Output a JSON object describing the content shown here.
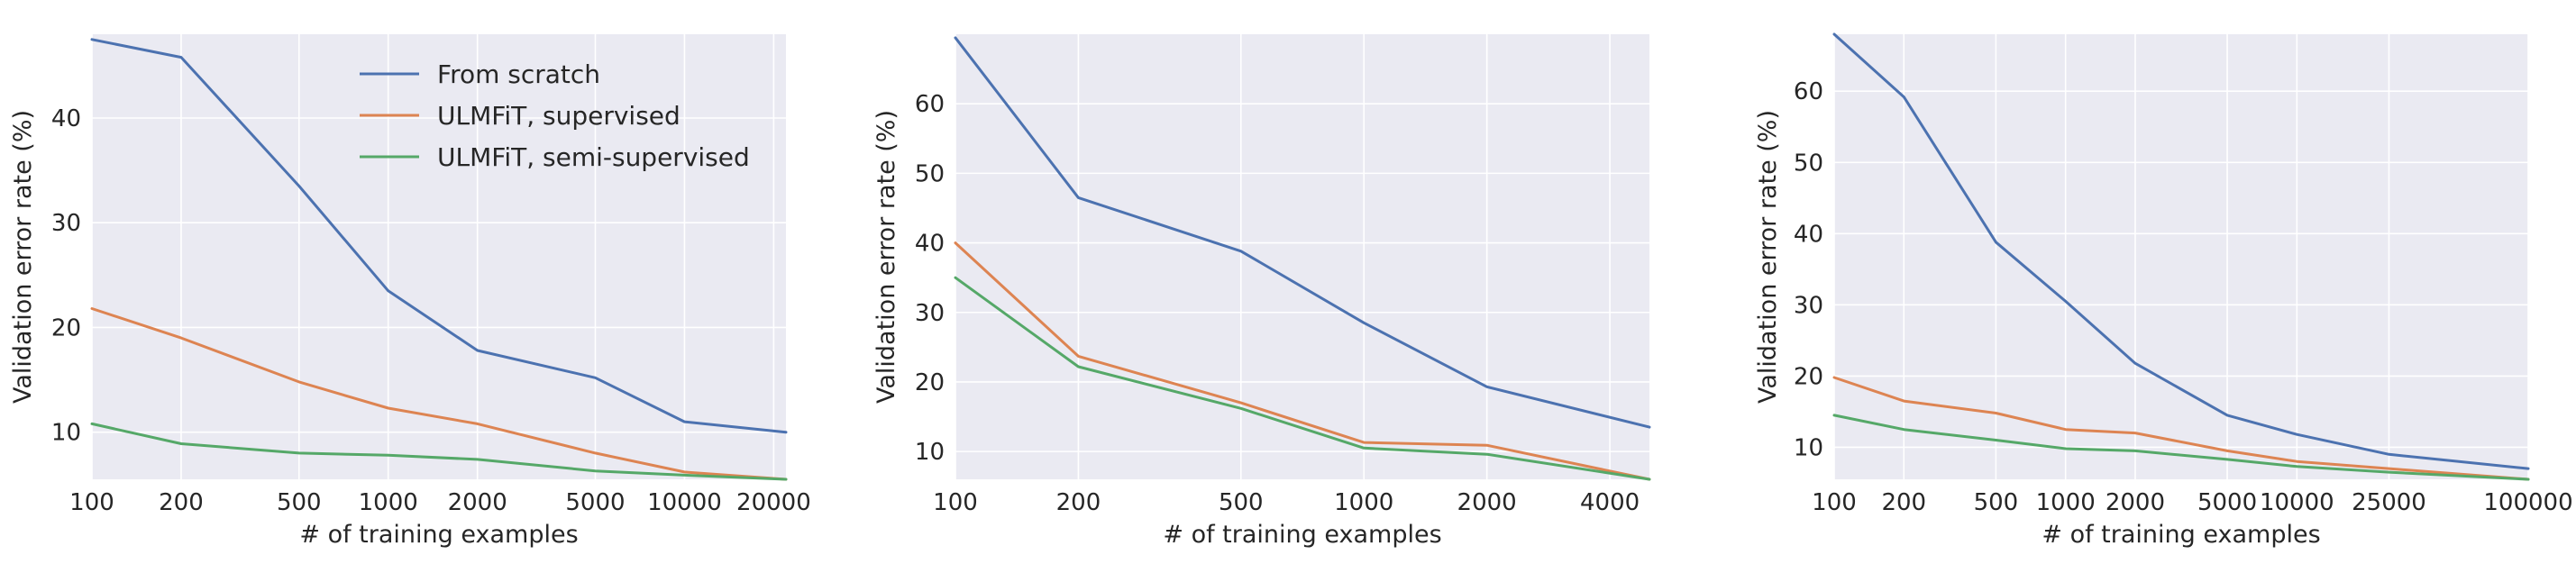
{
  "chart_data": [
    {
      "type": "line",
      "xlabel": "# of training examples",
      "ylabel": "Validation error rate (%)",
      "x_scale": "log",
      "xlim": [
        100,
        22000
      ],
      "ylim": [
        5.5,
        48
      ],
      "x_ticks": [
        100,
        200,
        500,
        1000,
        2000,
        5000,
        10000,
        20000
      ],
      "x_tick_labels": [
        "100",
        "200",
        "500",
        "1000",
        "2000",
        "5000",
        "10000",
        "20000"
      ],
      "y_ticks": [
        10,
        20,
        30,
        40
      ],
      "y_tick_labels": [
        "10",
        "20",
        "30",
        "40"
      ],
      "grid": true,
      "legend": "top-center",
      "series": [
        {
          "name": "From scratch",
          "color": "#4c72b0",
          "x": [
            100,
            200,
            500,
            1000,
            2000,
            5000,
            10000,
            22000
          ],
          "values": [
            47.5,
            45.8,
            33.5,
            23.5,
            17.8,
            15.2,
            11.0,
            10.0
          ]
        },
        {
          "name": "ULMFiT, supervised",
          "color": "#dd8452",
          "x": [
            100,
            200,
            500,
            1000,
            2000,
            5000,
            10000,
            22000
          ],
          "values": [
            21.8,
            19.0,
            14.8,
            12.3,
            10.8,
            8.0,
            6.2,
            5.5
          ]
        },
        {
          "name": "ULMFiT, semi-supervised",
          "color": "#55a868",
          "x": [
            100,
            200,
            500,
            1000,
            2000,
            5000,
            10000,
            22000
          ],
          "values": [
            10.8,
            8.9,
            8.0,
            7.8,
            7.4,
            6.3,
            5.9,
            5.5
          ]
        }
      ]
    },
    {
      "type": "line",
      "xlabel": "# of training examples",
      "ylabel": "Validation error rate (%)",
      "x_scale": "log",
      "xlim": [
        100,
        5000
      ],
      "ylim": [
        6,
        70
      ],
      "x_ticks": [
        100,
        200,
        500,
        1000,
        2000,
        4000
      ],
      "x_tick_labels": [
        "100",
        "200",
        "500",
        "1000",
        "2000",
        "4000"
      ],
      "y_ticks": [
        10,
        20,
        30,
        40,
        50,
        60
      ],
      "y_tick_labels": [
        "10",
        "20",
        "30",
        "40",
        "50",
        "60"
      ],
      "grid": true,
      "series": [
        {
          "name": "From scratch",
          "color": "#4c72b0",
          "x": [
            100,
            200,
            500,
            1000,
            2000,
            5000
          ],
          "values": [
            69.5,
            46.5,
            38.8,
            28.5,
            19.3,
            13.5
          ]
        },
        {
          "name": "ULMFiT, supervised",
          "color": "#dd8452",
          "x": [
            100,
            200,
            500,
            1000,
            2000,
            5000
          ],
          "values": [
            40.0,
            23.7,
            17.0,
            11.3,
            10.9,
            6.0
          ]
        },
        {
          "name": "ULMFiT, semi-supervised",
          "color": "#55a868",
          "x": [
            100,
            200,
            500,
            1000,
            2000,
            5000
          ],
          "values": [
            35.0,
            22.2,
            16.2,
            10.5,
            9.6,
            6.0
          ]
        }
      ]
    },
    {
      "type": "line",
      "xlabel": "# of training examples",
      "ylabel": "Validation error rate (%)",
      "x_scale": "log",
      "xlim": [
        100,
        100000
      ],
      "ylim": [
        5.5,
        68
      ],
      "x_ticks": [
        100,
        200,
        500,
        1000,
        2000,
        5000,
        10000,
        25000,
        100000
      ],
      "x_tick_labels": [
        "100",
        "200",
        "500",
        "1000",
        "2000",
        "5000",
        "10000",
        "25000",
        "100000"
      ],
      "y_ticks": [
        10,
        20,
        30,
        40,
        50,
        60
      ],
      "y_tick_labels": [
        "10",
        "20",
        "30",
        "40",
        "50",
        "60"
      ],
      "grid": true,
      "series": [
        {
          "name": "From scratch",
          "color": "#4c72b0",
          "x": [
            100,
            200,
            500,
            1000,
            2000,
            5000,
            10000,
            25000,
            100000
          ],
          "values": [
            68.0,
            59.2,
            38.8,
            30.5,
            21.8,
            14.5,
            11.8,
            9.0,
            7.0
          ]
        },
        {
          "name": "ULMFiT, supervised",
          "color": "#dd8452",
          "x": [
            100,
            200,
            500,
            1000,
            2000,
            5000,
            10000,
            25000,
            100000
          ],
          "values": [
            19.8,
            16.5,
            14.8,
            12.5,
            12.0,
            9.5,
            8.0,
            7.0,
            5.5
          ]
        },
        {
          "name": "ULMFiT, semi-supervised",
          "color": "#55a868",
          "x": [
            100,
            200,
            500,
            1000,
            2000,
            5000,
            10000,
            25000,
            100000
          ],
          "values": [
            14.5,
            12.5,
            11.0,
            9.8,
            9.5,
            8.3,
            7.3,
            6.5,
            5.5
          ]
        }
      ]
    }
  ]
}
